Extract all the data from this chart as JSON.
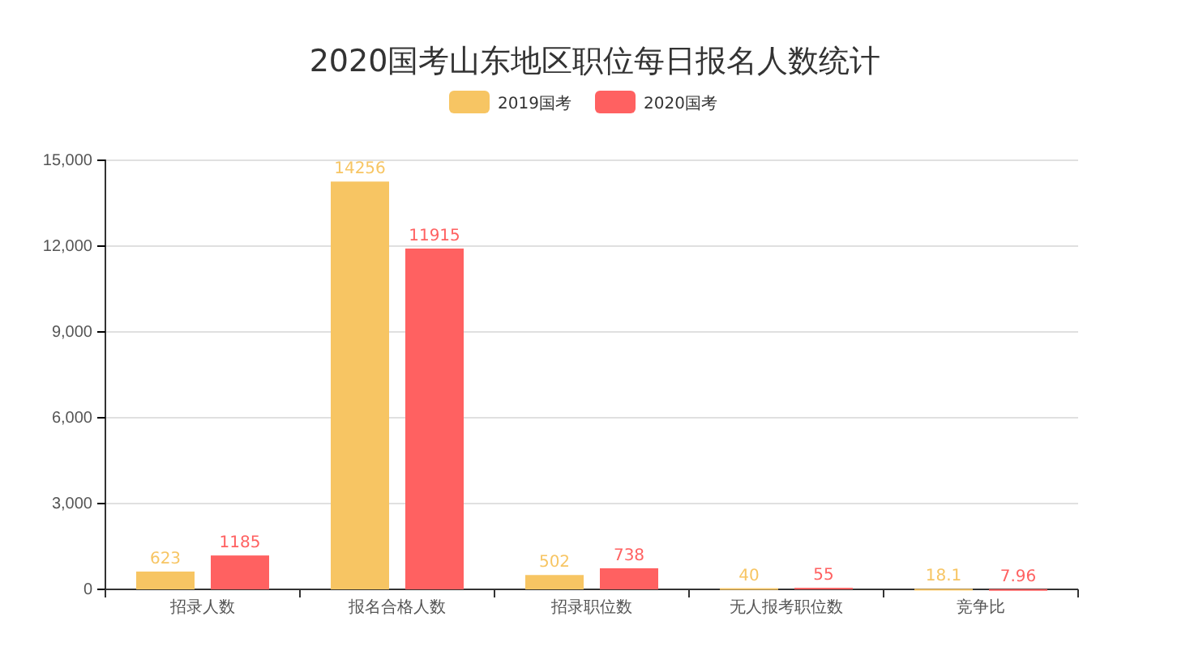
{
  "chart_data": {
    "type": "bar",
    "title": "2020国考山东地区职位每日报名人数统计",
    "categories": [
      "招录人数",
      "报名合格人数",
      "招录职位数",
      "无人报考职位数",
      "竞争比"
    ],
    "series": [
      {
        "name": "2019国考",
        "color": "#f7c563",
        "values": [
          623,
          14256,
          502,
          40,
          18.1
        ]
      },
      {
        "name": "2020国考",
        "color": "#ff6161",
        "values": [
          1185,
          11915,
          738,
          55,
          7.96
        ]
      }
    ],
    "ylim": [
      0,
      15000
    ],
    "yticks": [
      {
        "value": 0,
        "label": "0"
      },
      {
        "value": 3000,
        "label": "3,000"
      },
      {
        "value": 6000,
        "label": "6,000"
      },
      {
        "value": 9000,
        "label": "9,000"
      },
      {
        "value": 12000,
        "label": "12,000"
      },
      {
        "value": 15000,
        "label": "15,000"
      }
    ],
    "grid": "y",
    "legend": "top",
    "data_labels": true
  }
}
